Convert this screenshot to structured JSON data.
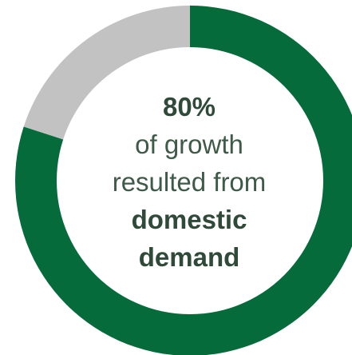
{
  "chart_data": {
    "type": "pie",
    "style": "donut",
    "slices": [
      {
        "value": 80,
        "color": "#066b3a"
      },
      {
        "value": 20,
        "color": "#c2c2c2"
      }
    ],
    "center_label": {
      "percent": "80%",
      "line1": "of growth",
      "line2": "resulted from",
      "line3": "domestic",
      "line4": "demand"
    }
  }
}
